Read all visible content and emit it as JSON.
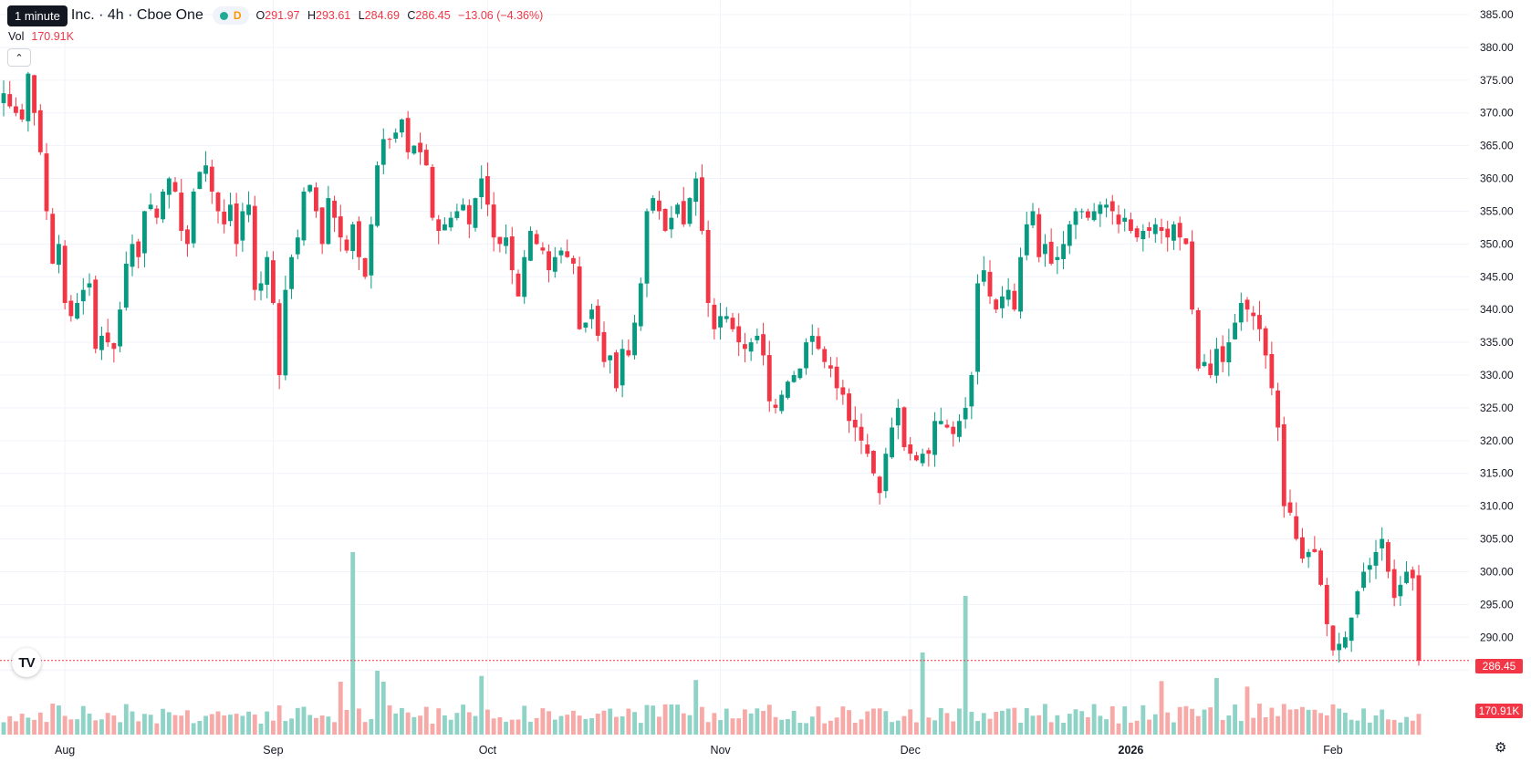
{
  "legend": {
    "tooltip": "1 minute",
    "symbol": "Inc. · 4h · Cboe One",
    "status_letter": "D",
    "open_label": "O",
    "open": "291.97",
    "high_label": "H",
    "high": "293.61",
    "low_label": "L",
    "low": "284.69",
    "close_label": "C",
    "close": "286.45",
    "change": "−13.06 (−4.36%)",
    "vol_label": "Vol",
    "vol_value": "170.91K"
  },
  "price_axis": {
    "ticks": [
      "385.00",
      "380.00",
      "375.00",
      "370.00",
      "365.00",
      "360.00",
      "355.00",
      "350.00",
      "345.00",
      "340.00",
      "335.00",
      "330.00",
      "325.00",
      "320.00",
      "315.00",
      "310.00",
      "305.00",
      "300.00",
      "295.00",
      "290.00",
      "285.00"
    ],
    "last_price_label": "286.45",
    "volume_label": "170.91K"
  },
  "time_axis": {
    "labels": [
      {
        "text": "Aug",
        "bold": false
      },
      {
        "text": "Sep",
        "bold": false
      },
      {
        "text": "Oct",
        "bold": false
      },
      {
        "text": "Nov",
        "bold": false
      },
      {
        "text": "Dec",
        "bold": false
      },
      {
        "text": "2026",
        "bold": true
      },
      {
        "text": "Feb",
        "bold": false
      }
    ]
  },
  "colors": {
    "up": "#089981",
    "down": "#f23645",
    "up_vol": "#8fd3c7",
    "down_vol": "#f7a9a7",
    "grid": "#f0f3fa"
  },
  "chart_data": {
    "type": "candlestick",
    "interval": "4h",
    "ylim": [
      283.5,
      386
    ],
    "last_price": 286.45,
    "last_volume": "170.91K",
    "month_boundaries": [
      {
        "label": "Aug",
        "index": 10
      },
      {
        "label": "Sep",
        "index": 44
      },
      {
        "label": "Oct",
        "index": 79
      },
      {
        "label": "Nov",
        "index": 117
      },
      {
        "label": "Dec",
        "index": 148
      },
      {
        "label": "2026",
        "index": 184
      },
      {
        "label": "Feb",
        "index": 217
      }
    ],
    "closes": [
      373,
      371,
      370,
      369,
      376,
      370,
      364,
      355,
      347,
      350,
      341,
      339,
      341,
      343,
      344,
      334,
      336,
      335,
      334,
      340,
      347,
      350,
      348,
      355,
      356,
      354,
      358,
      360,
      358,
      352,
      350,
      358,
      361,
      362,
      358,
      355,
      353,
      356,
      350,
      355,
      356,
      343,
      344,
      348,
      341,
      330,
      343,
      348,
      351,
      358,
      359,
      355,
      350,
      357,
      354,
      351,
      349,
      353,
      348,
      345,
      353,
      362,
      366,
      366,
      367,
      369,
      364,
      365,
      364,
      362,
      354,
      352,
      353,
      354,
      355,
      356,
      353,
      357,
      360,
      356,
      351,
      350,
      351,
      346,
      342,
      348,
      352,
      350,
      349,
      346,
      348,
      349,
      348,
      347,
      337,
      338,
      340,
      336,
      332,
      333,
      328,
      334,
      333,
      338,
      344,
      355,
      357,
      355,
      352,
      354,
      356,
      353,
      357,
      360,
      352,
      341,
      337,
      339,
      339,
      337,
      335,
      334,
      335,
      336,
      333,
      326,
      325,
      327,
      329,
      330,
      331,
      335,
      336,
      334,
      332,
      331,
      328,
      327,
      323,
      322,
      320,
      318,
      315,
      312,
      318,
      322,
      325,
      319,
      318,
      317,
      318,
      318,
      323,
      323,
      322,
      321,
      323,
      325,
      330,
      344,
      346,
      342,
      340,
      342,
      343,
      340,
      348,
      353,
      355,
      348,
      350,
      347,
      348,
      350,
      353,
      355,
      355,
      354,
      355,
      356,
      356,
      355,
      353,
      354,
      352,
      351,
      352,
      352,
      353,
      352,
      351,
      353,
      351,
      350,
      340,
      331,
      332,
      330,
      334,
      332,
      335,
      338,
      341,
      340,
      339,
      337,
      333,
      328,
      322,
      310,
      309,
      305,
      302,
      303,
      303,
      298,
      292,
      288,
      289,
      290,
      293,
      297,
      300,
      301,
      303,
      305,
      300,
      296,
      298,
      300,
      299,
      286.45
    ],
    "volume_note": "relative per-bar volume, largest bar near mid-September"
  }
}
